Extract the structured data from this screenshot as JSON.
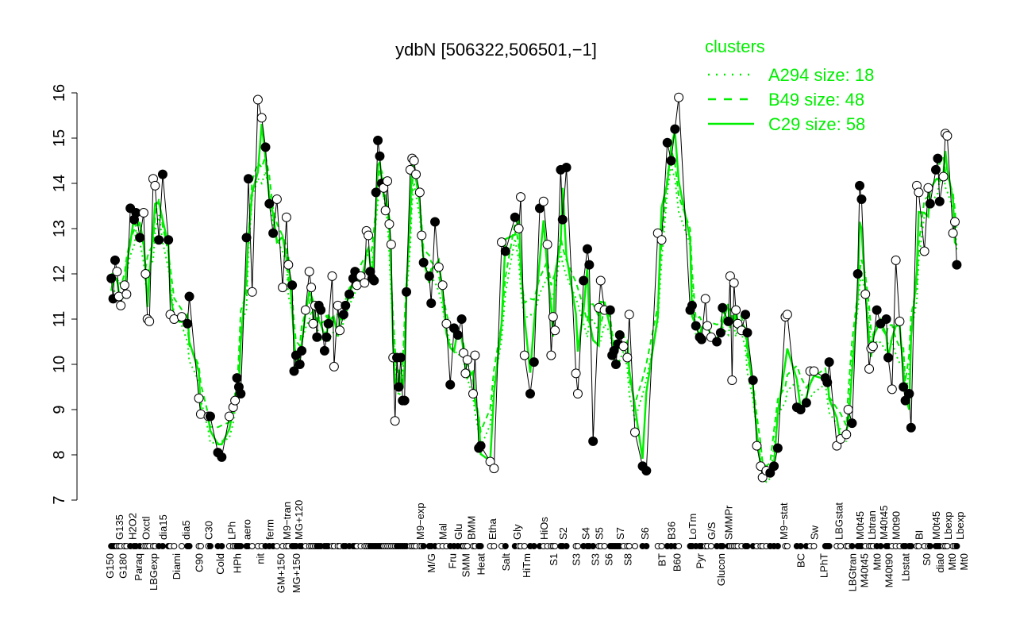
{
  "chart_data": {
    "type": "line",
    "title": "ydbN [506322,506501,−1]",
    "xlabel": "",
    "ylabel": "",
    "ylim": [
      7,
      16
    ],
    "xlim": [
      0,
      466
    ],
    "y_ticks": [
      7,
      8,
      9,
      10,
      11,
      12,
      13,
      14,
      15,
      16
    ],
    "grid": false,
    "colors": {
      "points": "#000000",
      "clusters": "#00ee00"
    },
    "legend": {
      "title": "clusters",
      "placement": "top-right",
      "entries": [
        {
          "label": "A294 size: 18",
          "style": "dotted"
        },
        {
          "label": "B49 size: 48",
          "style": "dashed"
        },
        {
          "label": "C29 size: 58",
          "style": "solid"
        }
      ]
    },
    "x_labels_top": [
      [
        "G135",
        22
      ],
      [
        "H2O2",
        29
      ],
      [
        "Oxctl",
        36
      ],
      [
        "dia15",
        45
      ],
      [
        "dia5",
        57
      ],
      [
        "C30",
        69
      ],
      [
        "LPh",
        81
      ],
      [
        "aero",
        89
      ],
      [
        "ferm",
        101
      ],
      [
        "M9−tran",
        110
      ],
      [
        "MG+120",
        116
      ],
      [
        "M9−exp",
        180
      ],
      [
        "Mal",
        192
      ],
      [
        "Glu",
        200
      ],
      [
        "BMM",
        207
      ],
      [
        "Etha",
        218
      ],
      [
        "Gly",
        231
      ],
      [
        "HiOs",
        245
      ],
      [
        "S2",
        255
      ],
      [
        "S4",
        267
      ],
      [
        "S5",
        274
      ],
      [
        "S7",
        285
      ],
      [
        "S6",
        298
      ],
      [
        "B36",
        312
      ],
      [
        "LoTm",
        323
      ],
      [
        "G/S",
        333
      ],
      [
        "SMMPr",
        342
      ],
      [
        "M9−stat",
        371
      ],
      [
        "Sw",
        387
      ],
      [
        "LBGstat",
        400
      ],
      [
        "M0t45",
        411
      ],
      [
        "Lbtran",
        416
      ],
      [
        "M40t45",
        420
      ],
      [
        "M0t90",
        430
      ],
      [
        "BI",
        442
      ],
      [
        "M0t45",
        451
      ],
      [
        "Lbexp",
        456
      ],
      [
        "Lbexp",
        459
      ]
    ],
    "x_labels_bottom": [
      [
        "G150",
        17
      ],
      [
        "G180",
        24
      ],
      [
        "Paraq",
        32
      ],
      [
        "LBGexp",
        40
      ],
      [
        "Diami",
        52
      ],
      [
        "C90",
        64
      ],
      [
        "Cold",
        75
      ],
      [
        "HPh",
        84
      ],
      [
        "nit",
        96
      ],
      [
        "GM+150",
        107
      ],
      [
        "MG+150",
        115
      ],
      [
        "M/G",
        186
      ],
      [
        "Fru",
        197
      ],
      [
        "SMM",
        204
      ],
      [
        "Heat",
        212
      ],
      [
        "Salt",
        225
      ],
      [
        "HiTm",
        236
      ],
      [
        "S1",
        250
      ],
      [
        "S3",
        262
      ],
      [
        "S3",
        272
      ],
      [
        "S6",
        279
      ],
      [
        "S8",
        289
      ],
      [
        "BT",
        307
      ],
      [
        "B60",
        315
      ],
      [
        "Pyr",
        327
      ],
      [
        "Glucon",
        338
      ],
      [
        "BC",
        380
      ],
      [
        "LPhT",
        392
      ],
      [
        "LBGtran",
        407
      ],
      [
        "M40t45",
        412
      ],
      [
        "Mt0",
        420
      ],
      [
        "M40t90",
        425
      ],
      [
        "Lbstat",
        435
      ],
      [
        "S0",
        446
      ],
      [
        "dia0",
        453
      ],
      [
        "Mt0",
        457
      ],
      [
        "Mt0",
        460
      ]
    ],
    "points": [
      [
        18,
        11.9
      ],
      [
        19,
        11.45
      ],
      [
        20,
        12.3
      ],
      [
        21,
        12.05
      ],
      [
        22,
        11.5
      ],
      [
        23,
        11.3
      ],
      [
        25,
        11.75
      ],
      [
        26,
        11.55
      ],
      [
        28,
        13.45
      ],
      [
        30,
        13.2
      ],
      [
        31,
        13.35
      ],
      [
        33,
        12.8
      ],
      [
        35,
        13.35
      ],
      [
        36,
        12.0
      ],
      [
        37,
        11.0
      ],
      [
        38,
        10.95
      ],
      [
        40,
        14.1
      ],
      [
        41,
        13.95
      ],
      [
        43,
        12.75
      ],
      [
        45,
        14.2
      ],
      [
        48,
        12.75
      ],
      [
        49,
        11.1
      ],
      [
        51,
        11.0
      ],
      [
        55,
        11.05
      ],
      [
        58,
        10.9
      ],
      [
        59,
        11.5
      ],
      [
        64,
        9.25
      ],
      [
        65,
        8.9
      ],
      [
        69,
        8.85
      ],
      [
        70,
        8.85
      ],
      [
        74,
        8.05
      ],
      [
        76,
        7.95
      ],
      [
        80,
        8.85
      ],
      [
        82,
        9.05
      ],
      [
        83,
        9.2
      ],
      [
        84,
        9.7
      ],
      [
        85,
        9.5
      ],
      [
        86,
        9.35
      ],
      [
        89,
        12.8
      ],
      [
        90,
        14.1
      ],
      [
        92,
        11.6
      ],
      [
        95,
        15.85
      ],
      [
        97,
        15.45
      ],
      [
        99,
        14.8
      ],
      [
        101,
        13.55
      ],
      [
        103,
        12.9
      ],
      [
        105,
        13.65
      ],
      [
        108,
        11.7
      ],
      [
        110,
        13.25
      ],
      [
        111,
        12.2
      ],
      [
        113,
        11.75
      ],
      [
        114,
        9.85
      ],
      [
        115,
        10.2
      ],
      [
        117,
        10.0
      ],
      [
        118,
        10.3
      ],
      [
        120,
        11.2
      ],
      [
        122,
        12.05
      ],
      [
        123,
        11.7
      ],
      [
        124,
        10.9
      ],
      [
        125,
        11.3
      ],
      [
        126,
        10.6
      ],
      [
        127,
        11.3
      ],
      [
        128,
        11.2
      ],
      [
        130,
        10.3
      ],
      [
        131,
        10.6
      ],
      [
        132,
        10.9
      ],
      [
        134,
        11.95
      ],
      [
        135,
        9.95
      ],
      [
        137,
        11.3
      ],
      [
        138,
        10.75
      ],
      [
        140,
        11.1
      ],
      [
        141,
        11.3
      ],
      [
        143,
        11.55
      ],
      [
        145,
        11.9
      ],
      [
        146,
        12.05
      ],
      [
        147,
        11.75
      ],
      [
        149,
        11.95
      ],
      [
        151,
        11.8
      ],
      [
        152,
        12.95
      ],
      [
        153,
        12.85
      ],
      [
        154,
        12.05
      ],
      [
        155,
        11.9
      ],
      [
        156,
        11.85
      ],
      [
        157,
        13.8
      ],
      [
        158,
        14.95
      ],
      [
        159,
        14.6
      ],
      [
        160,
        14.0
      ],
      [
        161,
        13.9
      ],
      [
        162,
        13.4
      ],
      [
        163,
        14.05
      ],
      [
        164,
        13.1
      ],
      [
        165,
        12.65
      ],
      [
        166,
        10.15
      ],
      [
        167,
        8.75
      ],
      [
        168,
        10.15
      ],
      [
        169,
        9.5
      ],
      [
        170,
        10.15
      ],
      [
        171,
        9.2
      ],
      [
        172,
        9.2
      ],
      [
        173,
        11.6
      ],
      [
        175,
        14.3
      ],
      [
        176,
        14.55
      ],
      [
        177,
        14.5
      ],
      [
        178,
        14.2
      ],
      [
        180,
        13.8
      ],
      [
        181,
        12.85
      ],
      [
        182,
        12.25
      ],
      [
        185,
        11.95
      ],
      [
        186,
        11.35
      ],
      [
        188,
        13.15
      ],
      [
        190,
        12.15
      ],
      [
        192,
        11.75
      ],
      [
        194,
        10.9
      ],
      [
        196,
        9.55
      ],
      [
        198,
        10.8
      ],
      [
        200,
        10.65
      ],
      [
        202,
        11.0
      ],
      [
        203,
        10.25
      ],
      [
        204,
        9.8
      ],
      [
        205,
        10.1
      ],
      [
        208,
        9.35
      ],
      [
        209,
        10.2
      ],
      [
        211,
        8.15
      ],
      [
        212,
        8.2
      ],
      [
        217,
        7.85
      ],
      [
        219,
        7.7
      ],
      [
        223,
        12.7
      ],
      [
        225,
        12.5
      ],
      [
        230,
        13.25
      ],
      [
        232,
        13.0
      ],
      [
        233,
        13.7
      ],
      [
        235,
        10.2
      ],
      [
        238,
        9.35
      ],
      [
        240,
        10.05
      ],
      [
        243,
        13.45
      ],
      [
        245,
        13.6
      ],
      [
        247,
        12.65
      ],
      [
        249,
        10.2
      ],
      [
        250,
        11.05
      ],
      [
        251,
        10.75
      ],
      [
        254,
        14.3
      ],
      [
        255,
        13.2
      ],
      [
        257,
        14.35
      ],
      [
        262,
        9.8
      ],
      [
        263,
        9.35
      ],
      [
        266,
        11.85
      ],
      [
        268,
        12.55
      ],
      [
        269,
        12.2
      ],
      [
        271,
        8.3
      ],
      [
        274,
        11.25
      ],
      [
        275,
        11.85
      ],
      [
        277,
        11.2
      ],
      [
        280,
        11.2
      ],
      [
        281,
        10.2
      ],
      [
        282,
        10.3
      ],
      [
        283,
        10.0
      ],
      [
        284,
        10.45
      ],
      [
        285,
        10.65
      ],
      [
        287,
        10.4
      ],
      [
        289,
        10.15
      ],
      [
        290,
        11.1
      ],
      [
        293,
        8.5
      ],
      [
        297,
        7.75
      ],
      [
        299,
        7.65
      ],
      [
        305,
        12.9
      ],
      [
        307,
        12.75
      ],
      [
        310,
        14.9
      ],
      [
        312,
        14.5
      ],
      [
        314,
        15.2
      ],
      [
        316,
        15.9
      ],
      [
        322,
        11.2
      ],
      [
        323,
        11.3
      ],
      [
        325,
        10.85
      ],
      [
        327,
        10.6
      ],
      [
        328,
        10.55
      ],
      [
        330,
        11.45
      ],
      [
        331,
        10.85
      ],
      [
        333,
        10.6
      ],
      [
        336,
        10.5
      ],
      [
        338,
        10.7
      ],
      [
        339,
        11.25
      ],
      [
        342,
        10.95
      ],
      [
        343,
        11.95
      ],
      [
        344,
        9.65
      ],
      [
        345,
        11.8
      ],
      [
        346,
        11.2
      ],
      [
        347,
        10.9
      ],
      [
        349,
        10.75
      ],
      [
        351,
        11.1
      ],
      [
        352,
        10.7
      ],
      [
        355,
        9.65
      ],
      [
        357,
        8.2
      ],
      [
        359,
        7.75
      ],
      [
        360,
        7.5
      ],
      [
        362,
        7.65
      ],
      [
        364,
        7.6
      ],
      [
        366,
        7.75
      ],
      [
        368,
        8.15
      ],
      [
        372,
        11.05
      ],
      [
        373,
        11.1
      ],
      [
        378,
        9.05
      ],
      [
        380,
        9.0
      ],
      [
        383,
        9.15
      ],
      [
        385,
        9.85
      ],
      [
        387,
        9.85
      ],
      [
        393,
        9.7
      ],
      [
        394,
        9.6
      ],
      [
        395,
        10.05
      ],
      [
        399,
        8.2
      ],
      [
        401,
        8.35
      ],
      [
        404,
        8.45
      ],
      [
        405,
        9.0
      ],
      [
        407,
        8.7
      ],
      [
        410,
        12.0
      ],
      [
        411,
        13.95
      ],
      [
        412,
        13.65
      ],
      [
        414,
        11.55
      ],
      [
        416,
        9.9
      ],
      [
        417,
        10.35
      ],
      [
        418,
        10.4
      ],
      [
        420,
        11.2
      ],
      [
        422,
        10.9
      ],
      [
        425,
        11.0
      ],
      [
        426,
        10.15
      ],
      [
        428,
        9.45
      ],
      [
        430,
        12.3
      ],
      [
        432,
        10.95
      ],
      [
        434,
        9.5
      ],
      [
        435,
        9.2
      ],
      [
        437,
        9.35
      ],
      [
        438,
        8.6
      ],
      [
        441,
        13.95
      ],
      [
        442,
        13.8
      ],
      [
        445,
        12.5
      ],
      [
        447,
        13.9
      ],
      [
        448,
        13.55
      ],
      [
        451,
        14.3
      ],
      [
        452,
        14.55
      ],
      [
        453,
        13.6
      ],
      [
        455,
        14.15
      ],
      [
        456,
        15.1
      ],
      [
        457,
        15.05
      ],
      [
        460,
        12.9
      ],
      [
        461,
        13.15
      ],
      [
        462,
        12.2
      ]
    ]
  }
}
